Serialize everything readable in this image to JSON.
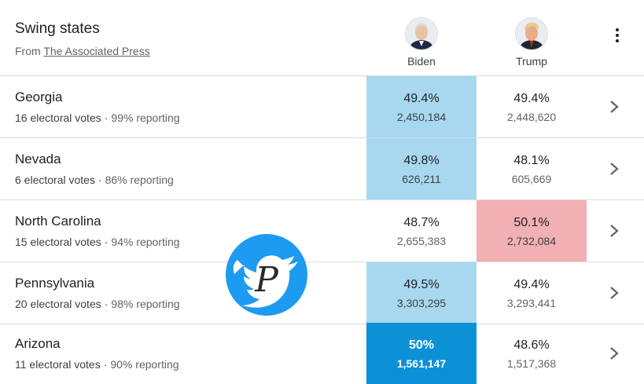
{
  "header": {
    "title": "Swing states",
    "source_prefix": "From ",
    "source_link": "The Associated Press"
  },
  "candidates": [
    {
      "name": "Biden",
      "avatar_icon": "biden-avatar",
      "party_color": "#0d91d6"
    },
    {
      "name": "Trump",
      "avatar_icon": "trump-avatar",
      "party_color": "#e8505b"
    }
  ],
  "states": [
    {
      "name": "Georgia",
      "electoral": "16 electoral votes",
      "reporting": "99% reporting",
      "biden_pct": "49.4%",
      "biden_votes": "2,450,184",
      "trump_pct": "49.4%",
      "trump_votes": "2,448,620"
    },
    {
      "name": "Nevada",
      "electoral": "6 electoral votes",
      "reporting": "86% reporting",
      "biden_pct": "49.8%",
      "biden_votes": "626,211",
      "trump_pct": "48.1%",
      "trump_votes": "605,669"
    },
    {
      "name": "North Carolina",
      "electoral": "15 electoral votes",
      "reporting": "94% reporting",
      "biden_pct": "48.7%",
      "biden_votes": "2,655,383",
      "trump_pct": "50.1%",
      "trump_votes": "2,732,084"
    },
    {
      "name": "Pennsylvania",
      "electoral": "20 electoral votes",
      "reporting": "98% reporting",
      "biden_pct": "49.5%",
      "biden_votes": "3,303,295",
      "trump_pct": "49.4%",
      "trump_votes": "3,293,441"
    },
    {
      "name": "Arizona",
      "electoral": "11 electoral votes",
      "reporting": "90% reporting",
      "biden_pct": "50%",
      "biden_votes": "1,561,147",
      "trump_pct": "48.6%",
      "trump_votes": "1,517,368"
    }
  ],
  "separator": "·",
  "icons": {
    "menu": "more-vert-icon",
    "row_action": "chevron-right-icon",
    "overlay": "twitter-bird-watermark"
  },
  "watermark_letter": "P"
}
